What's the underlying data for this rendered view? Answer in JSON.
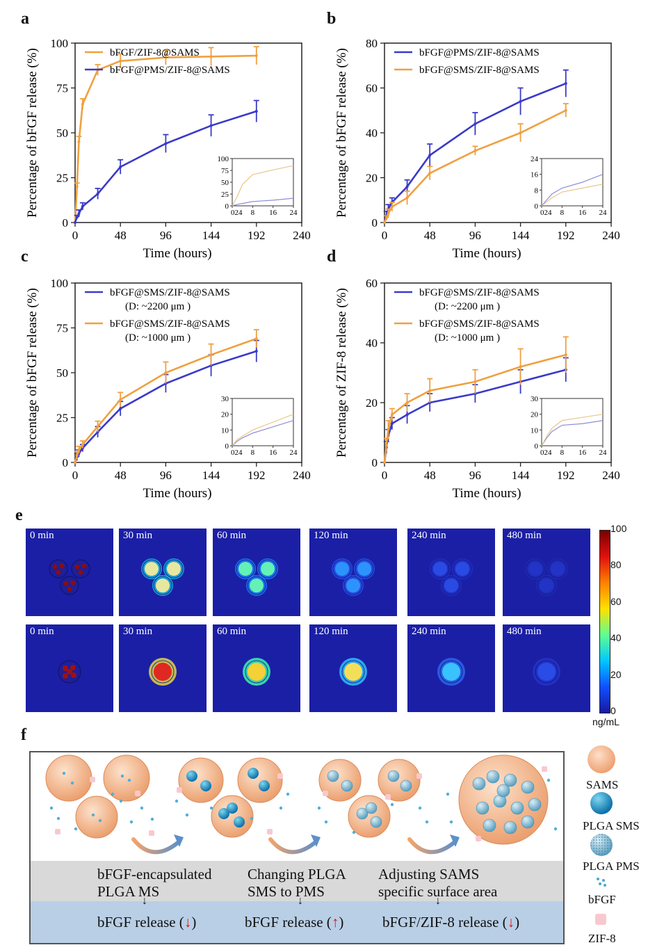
{
  "panel_labels": {
    "a": "a",
    "b": "b",
    "c": "c",
    "d": "d",
    "e": "e",
    "f": "f"
  },
  "colors": {
    "orange": "#f0a040",
    "blue": "#3a3ac8"
  },
  "chart_data": [
    {
      "id": "a",
      "type": "line",
      "xlabel": "Time (hours)",
      "ylabel": "Percentage of bFGF release (%)",
      "xlim": [
        0,
        240
      ],
      "ylim": [
        0,
        100
      ],
      "xticks": [
        "0",
        "48",
        "96",
        "144",
        "192",
        "240"
      ],
      "yticks": [
        "0",
        "25",
        "50",
        "75",
        "100"
      ],
      "legend_position": "top-left",
      "series": [
        {
          "name": "bFGF/ZIF-8@SAMS",
          "color": "#f0a040",
          "x": [
            0,
            2,
            4,
            8,
            24,
            48,
            96,
            144,
            192
          ],
          "y": [
            0,
            20,
            45,
            66,
            85,
            90,
            92,
            92.5,
            93
          ],
          "err": [
            0,
            2,
            3,
            3,
            3,
            4,
            4,
            5,
            5
          ]
        },
        {
          "name": "bFGF@PMS/ZIF-8@SAMS",
          "color": "#3a3ac8",
          "x": [
            0,
            2,
            4,
            8,
            24,
            48,
            96,
            144,
            192
          ],
          "y": [
            0,
            3,
            5,
            9,
            16,
            31,
            44,
            54,
            62
          ],
          "err": [
            0,
            1,
            2,
            2,
            3,
            4,
            5,
            6,
            6
          ]
        }
      ],
      "inset": {
        "xlim": [
          0,
          24
        ],
        "ylim": [
          0,
          100
        ],
        "xticks": [
          "0",
          "2",
          "4",
          "8",
          "16",
          "24"
        ],
        "yticks": [
          "0",
          "25",
          "50",
          "75",
          "100"
        ],
        "series": [
          {
            "color": "#e8c68a",
            "x": [
              0,
              2,
              4,
              8,
              16,
              24
            ],
            "y": [
              0,
              20,
              45,
              66,
              76,
              85
            ]
          },
          {
            "color": "#8d8dd8",
            "x": [
              0,
              2,
              4,
              8,
              16,
              24
            ],
            "y": [
              0,
              3,
              5,
              9,
              12,
              16
            ]
          }
        ]
      }
    },
    {
      "id": "b",
      "type": "line",
      "xlabel": "Time (hours)",
      "ylabel": "Percentage of bFGF release (%)",
      "xlim": [
        0,
        240
      ],
      "ylim": [
        0,
        80
      ],
      "xticks": [
        "0",
        "48",
        "96",
        "144",
        "192",
        "240"
      ],
      "yticks": [
        "0",
        "20",
        "40",
        "60",
        "80"
      ],
      "legend_position": "top-left",
      "series": [
        {
          "name": "bFGF@PMS/ZIF-8@SAMS",
          "color": "#3a3ac8",
          "x": [
            0,
            2,
            4,
            8,
            24,
            48,
            96,
            144,
            192
          ],
          "y": [
            0,
            3,
            6,
            9,
            16,
            30,
            44,
            54,
            62
          ],
          "err": [
            0,
            2,
            2,
            2,
            3,
            5,
            5,
            6,
            6
          ]
        },
        {
          "name": "bFGF@SMS/ZIF-8@SAMS",
          "color": "#f0a040",
          "x": [
            0,
            2,
            4,
            8,
            24,
            48,
            96,
            144,
            192
          ],
          "y": [
            0,
            2,
            4,
            7,
            11,
            22,
            32,
            40,
            50
          ],
          "err": [
            0,
            1,
            2,
            2,
            3,
            3,
            2,
            4,
            3
          ]
        }
      ],
      "inset": {
        "xlim": [
          0,
          24
        ],
        "ylim": [
          0,
          24
        ],
        "xticks": [
          "0",
          "2",
          "4",
          "8",
          "16",
          "24"
        ],
        "yticks": [
          "0",
          "8",
          "16",
          "24"
        ],
        "series": [
          {
            "color": "#8d8dd8",
            "x": [
              0,
              2,
              4,
              8,
              16,
              24
            ],
            "y": [
              0,
              3,
              6,
              9,
              12,
              16
            ]
          },
          {
            "color": "#e8c68a",
            "x": [
              0,
              2,
              4,
              8,
              16,
              24
            ],
            "y": [
              0,
              2,
              4,
              7,
              9,
              11
            ]
          }
        ]
      }
    },
    {
      "id": "c",
      "type": "line",
      "xlabel": "Time (hours)",
      "ylabel": "Percentage of bFGF release (%)",
      "xlim": [
        0,
        240
      ],
      "ylim": [
        0,
        100
      ],
      "xticks": [
        "0",
        "48",
        "96",
        "144",
        "192",
        "240"
      ],
      "yticks": [
        "0",
        "25",
        "50",
        "75",
        "100"
      ],
      "legend_position": "top-left",
      "series": [
        {
          "name": "bFGF@SMS/ZIF-8@SAMS",
          "sub": "(D:  ~2200 μm )",
          "color": "#3a3ac8",
          "x": [
            0,
            2,
            4,
            8,
            24,
            48,
            96,
            144,
            192
          ],
          "y": [
            0,
            3,
            5,
            8,
            17,
            30,
            44,
            54,
            62
          ],
          "err": [
            0,
            2,
            2,
            2,
            3,
            4,
            5,
            6,
            6
          ]
        },
        {
          "name": "bFGF@SMS/ZIF-8@SAMS",
          "sub": "(D:  ~1000 μm )",
          "color": "#f0a040",
          "x": [
            0,
            2,
            4,
            8,
            24,
            48,
            96,
            144,
            192
          ],
          "y": [
            0,
            4,
            7,
            10,
            20,
            35,
            50,
            60,
            69
          ],
          "err": [
            0,
            2,
            2,
            2,
            3,
            4,
            6,
            6,
            5
          ]
        }
      ],
      "inset": {
        "xlim": [
          0,
          24
        ],
        "ylim": [
          0,
          30
        ],
        "xticks": [
          "0",
          "2",
          "4",
          "8",
          "16",
          "24"
        ],
        "yticks": [
          "0",
          "10",
          "20",
          "30"
        ],
        "series": [
          {
            "color": "#8d8dd8",
            "x": [
              0,
              2,
              4,
              8,
              16,
              24
            ],
            "y": [
              0,
              3,
              5,
              8,
              12,
              16
            ]
          },
          {
            "color": "#e8c68a",
            "x": [
              0,
              2,
              4,
              8,
              16,
              24
            ],
            "y": [
              0,
              4,
              6,
              10,
              15,
              20
            ]
          }
        ]
      }
    },
    {
      "id": "d",
      "type": "line",
      "xlabel": "Time (hours)",
      "ylabel": "Percentage of ZIF-8 release (%)",
      "xlim": [
        0,
        240
      ],
      "ylim": [
        0,
        60
      ],
      "xticks": [
        "0",
        "48",
        "96",
        "144",
        "192",
        "240"
      ],
      "yticks": [
        "0",
        "20",
        "40",
        "60"
      ],
      "legend_position": "top-left",
      "series": [
        {
          "name": "bFGF@SMS/ZIF-8@SAMS",
          "sub": "(D:  ~2200 μm )",
          "color": "#3a3ac8",
          "x": [
            0,
            2,
            4,
            8,
            24,
            48,
            96,
            144,
            192
          ],
          "y": [
            0,
            5,
            9,
            13,
            16,
            20,
            23,
            27,
            31
          ],
          "err": [
            0,
            2,
            2,
            2,
            3,
            3,
            3,
            4,
            4
          ]
        },
        {
          "name": "bFGF@SMS/ZIF-8@SAMS",
          "sub": "(D:  ~1000 μm )",
          "color": "#f0a040",
          "x": [
            0,
            2,
            4,
            8,
            24,
            48,
            96,
            144,
            192
          ],
          "y": [
            0,
            6,
            11,
            16,
            20,
            24,
            27,
            32,
            36
          ],
          "err": [
            0,
            2,
            3,
            2,
            3,
            4,
            4,
            6,
            6
          ]
        }
      ],
      "inset": {
        "xlim": [
          0,
          24
        ],
        "ylim": [
          0,
          30
        ],
        "xticks": [
          "0",
          "2",
          "4",
          "8",
          "16",
          "24"
        ],
        "yticks": [
          "0",
          "10",
          "20",
          "30"
        ],
        "series": [
          {
            "color": "#8d8dd8",
            "x": [
              0,
              2,
              4,
              8,
              16,
              24
            ],
            "y": [
              0,
              5,
              9,
              13,
              14,
              16
            ]
          },
          {
            "color": "#e8c68a",
            "x": [
              0,
              2,
              4,
              8,
              16,
              24
            ],
            "y": [
              0,
              6,
              11,
              16,
              18,
              20
            ]
          }
        ]
      }
    }
  ],
  "panel_e": {
    "row1_times": [
      "0 min",
      "30 min",
      "60 min",
      "120 min",
      "240 min",
      "480 min"
    ],
    "row2_times": [
      "0 min",
      "30 min",
      "60 min",
      "120 min",
      "240 min",
      "480 min"
    ],
    "colorbar": {
      "ticks": [
        "100",
        "80",
        "60",
        "40",
        "20",
        "0"
      ],
      "unit": "ng/mL"
    }
  },
  "panel_f": {
    "steps": [
      {
        "text": "bFGF-encapsulated\nPLGA MS",
        "release": "bFGF release (",
        "arrow": "↓",
        "close": ")"
      },
      {
        "text": "Changing PLGA\nSMS to PMS",
        "release": "bFGF release (",
        "arrow": "↑",
        "close": ")"
      },
      {
        "text": "Adjusting SAMS\nspecific surface area",
        "release": "bFGF/ZIF-8 release (",
        "arrow": "↓",
        "close": ")"
      }
    ],
    "legend": [
      "SAMS",
      "PLGA SMS",
      "PLGA PMS",
      "bFGF",
      "ZIF-8"
    ]
  }
}
